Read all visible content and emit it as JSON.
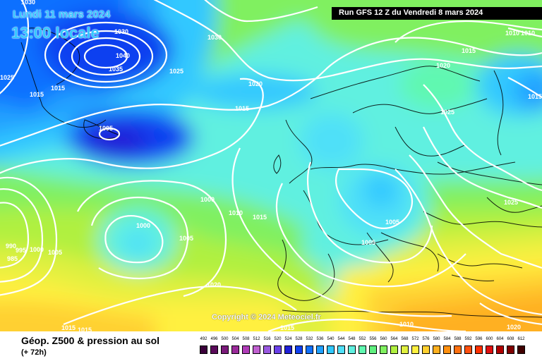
{
  "header": {
    "date": "Lundi 11 mars 2024",
    "time": "13:00 locale",
    "run": "Run GFS 12 Z du Vendredi 8 mars 2024"
  },
  "copyright": "Copyright © 2024 Meteociel.fr",
  "legend": {
    "title": "Géop. Z500 & pression au sol",
    "subtitle": "(+ 72h)",
    "scale": [
      {
        "label": "492",
        "color": "#3a003a"
      },
      {
        "label": "496",
        "color": "#5a0a5a"
      },
      {
        "label": "500",
        "color": "#7a1a7a"
      },
      {
        "label": "504",
        "color": "#9a2a9a"
      },
      {
        "label": "508",
        "color": "#b03cb8"
      },
      {
        "label": "512",
        "color": "#c060d0"
      },
      {
        "label": "516",
        "color": "#9a5ae0"
      },
      {
        "label": "520",
        "color": "#6a40e8"
      },
      {
        "label": "524",
        "color": "#2020d8"
      },
      {
        "label": "528",
        "color": "#1040f0"
      },
      {
        "label": "532",
        "color": "#1070ff"
      },
      {
        "label": "536",
        "color": "#20a0ff"
      },
      {
        "label": "540",
        "color": "#30c8ff"
      },
      {
        "label": "544",
        "color": "#50e0f8"
      },
      {
        "label": "548",
        "color": "#60f0e0"
      },
      {
        "label": "552",
        "color": "#60f8b0"
      },
      {
        "label": "556",
        "color": "#60f080"
      },
      {
        "label": "560",
        "color": "#80f060"
      },
      {
        "label": "564",
        "color": "#b0f040"
      },
      {
        "label": "568",
        "color": "#e0f040"
      },
      {
        "label": "572",
        "color": "#fff040"
      },
      {
        "label": "576",
        "color": "#ffd030"
      },
      {
        "label": "580",
        "color": "#ffb020"
      },
      {
        "label": "584",
        "color": "#ff9010"
      },
      {
        "label": "588",
        "color": "#ff7010"
      },
      {
        "label": "592",
        "color": "#ff5010"
      },
      {
        "label": "596",
        "color": "#ff3000"
      },
      {
        "label": "600",
        "color": "#e01010"
      },
      {
        "label": "604",
        "color": "#b00000"
      },
      {
        "label": "608",
        "color": "#800000"
      },
      {
        "label": "612",
        "color": "#400000"
      }
    ]
  },
  "pressure_labels": [
    "1030",
    "1030",
    "1030",
    "1040",
    "1035",
    "1025",
    "1025",
    "1015",
    "1015",
    "1020",
    "1015",
    "1005",
    "1015",
    "1020",
    "1025",
    "1015",
    "1010",
    "1010",
    "1000",
    "1010",
    "1015",
    "1000",
    "1005",
    "1005",
    "1005",
    "990",
    "995",
    "1000",
    "985",
    "1005",
    "1020",
    "1015",
    "1015",
    "1015",
    "1010",
    "1020",
    "1025"
  ],
  "colors": {
    "contour": "#ffffff",
    "coast": "#000000",
    "accent": "#35c8ff"
  }
}
